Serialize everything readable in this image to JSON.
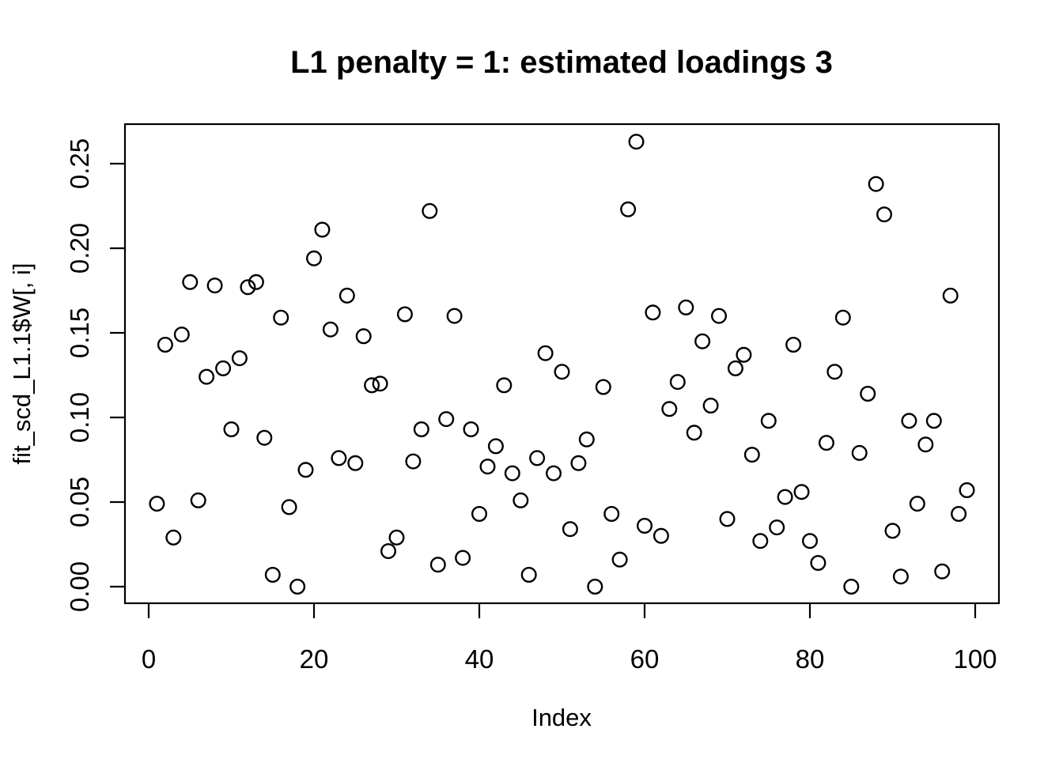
{
  "chart_data": {
    "type": "scatter",
    "title": "L1 penalty = 1: estimated loadings 3",
    "xlabel": "Index",
    "ylabel": "fit_scd_L1.1$W[, i]",
    "x_ticks": [
      0,
      20,
      40,
      60,
      80,
      100
    ],
    "y_ticks": [
      0.0,
      0.05,
      0.1,
      0.15,
      0.2,
      0.25
    ],
    "xlim": [
      0,
      100
    ],
    "ylim": [
      0,
      0.265
    ],
    "grid": false,
    "legend": null,
    "point_style": "open-circle",
    "colors": {
      "points": "#000000",
      "axis": "#000000",
      "background": "#ffffff"
    },
    "x": [
      1,
      2,
      3,
      4,
      5,
      6,
      7,
      8,
      9,
      10,
      11,
      12,
      13,
      14,
      15,
      16,
      17,
      18,
      19,
      20,
      21,
      22,
      23,
      24,
      25,
      26,
      27,
      28,
      29,
      30,
      31,
      32,
      33,
      34,
      35,
      36,
      37,
      38,
      39,
      40,
      41,
      42,
      43,
      44,
      45,
      46,
      47,
      48,
      49,
      50,
      51,
      52,
      53,
      54,
      55,
      56,
      57,
      58,
      59,
      60,
      61,
      62,
      63,
      64,
      65,
      66,
      67,
      68,
      69,
      70,
      71,
      72,
      73,
      74,
      75,
      76,
      77,
      78,
      79,
      80,
      81,
      82,
      83,
      84,
      85,
      86,
      87,
      88,
      89,
      90,
      91,
      92,
      93,
      94,
      95,
      96,
      97,
      98,
      99
    ],
    "y": [
      0.049,
      0.143,
      0.029,
      0.149,
      0.18,
      0.051,
      0.124,
      0.178,
      0.129,
      0.093,
      0.135,
      0.177,
      0.18,
      0.088,
      0.007,
      0.159,
      0.047,
      0.0,
      0.069,
      0.194,
      0.211,
      0.152,
      0.076,
      0.172,
      0.073,
      0.148,
      0.119,
      0.12,
      0.021,
      0.029,
      0.161,
      0.074,
      0.093,
      0.222,
      0.013,
      0.099,
      0.16,
      0.017,
      0.093,
      0.043,
      0.071,
      0.083,
      0.119,
      0.067,
      0.051,
      0.007,
      0.076,
      0.138,
      0.067,
      0.127,
      0.034,
      0.073,
      0.087,
      0.0,
      0.118,
      0.043,
      0.016,
      0.223,
      0.263,
      0.036,
      0.162,
      0.03,
      0.105,
      0.121,
      0.165,
      0.091,
      0.145,
      0.107,
      0.16,
      0.04,
      0.129,
      0.137,
      0.078,
      0.027,
      0.098,
      0.035,
      0.053,
      0.143,
      0.056,
      0.027,
      0.014,
      0.085,
      0.127,
      0.159,
      0.0,
      0.079,
      0.114,
      0.238,
      0.22,
      0.033,
      0.006,
      0.098,
      0.049,
      0.084,
      0.098,
      0.009,
      0.172,
      0.043,
      0.057
    ]
  }
}
